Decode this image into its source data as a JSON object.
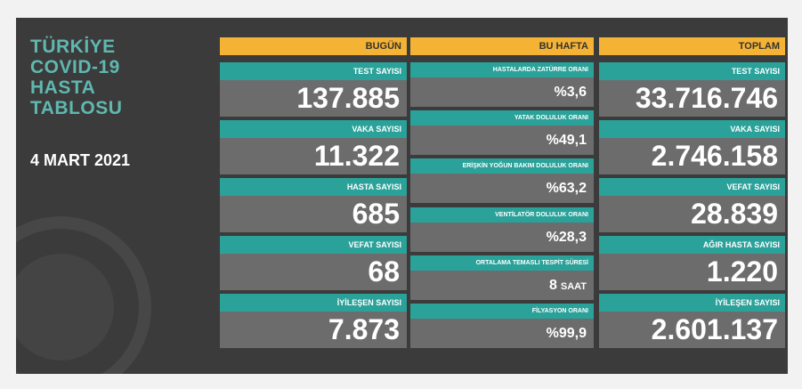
{
  "title": [
    "TÜRKİYE",
    "COVID-19",
    "HASTA",
    "TABLOSU"
  ],
  "date": "4 MART 2021",
  "columns": [
    {
      "header": "BUGÜN",
      "rows": [
        {
          "label": "TEST SAYISI",
          "value": "137.885"
        },
        {
          "label": "VAKA SAYISI",
          "value": "11.322"
        },
        {
          "label": "HASTA SAYISI",
          "value": "685"
        },
        {
          "label": "VEFAT SAYISI",
          "value": "68"
        },
        {
          "label": "İYİLEŞEN SAYISI",
          "value": "7.873"
        }
      ]
    },
    {
      "header": "BU HAFTA",
      "rows": [
        {
          "label": "HASTALARDA ZATÜRRE ORANI",
          "value": "%3,6"
        },
        {
          "label": "YATAK DOLULUK ORANI",
          "value": "%49,1"
        },
        {
          "label": "ERİŞKİN YOĞUN BAKIM DOLULUK ORANI",
          "value": "%63,2"
        },
        {
          "label": "VENTİLATÖR DOLULUK ORANI",
          "value": "%28,3"
        },
        {
          "label": "ORTALAMA TEMASLI TESPİT SÜRESİ",
          "value": "8",
          "unit": "SAAT"
        },
        {
          "label": "FİLYASYON ORANI",
          "value": "%99,9"
        }
      ]
    },
    {
      "header": "TOPLAM",
      "rows": [
        {
          "label": "TEST SAYISI",
          "value": "33.716.746"
        },
        {
          "label": "VAKA SAYISI",
          "value": "2.746.158"
        },
        {
          "label": "VEFAT SAYISI",
          "value": "28.839"
        },
        {
          "label": "AĞIR HASTA SAYISI",
          "value": "1.220"
        },
        {
          "label": "İYİLEŞEN SAYISI",
          "value": "2.601.137"
        }
      ]
    }
  ]
}
